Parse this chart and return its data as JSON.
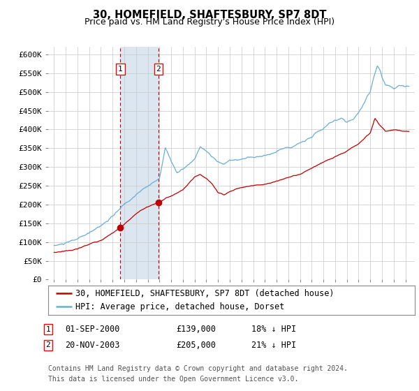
{
  "title": "30, HOMEFIELD, SHAFTESBURY, SP7 8DT",
  "subtitle": "Price paid vs. HM Land Registry's House Price Index (HPI)",
  "ylabel_ticks": [
    "£0",
    "£50K",
    "£100K",
    "£150K",
    "£200K",
    "£250K",
    "£300K",
    "£350K",
    "£400K",
    "£450K",
    "£500K",
    "£550K",
    "£600K"
  ],
  "ytick_values": [
    0,
    50000,
    100000,
    150000,
    200000,
    250000,
    300000,
    350000,
    400000,
    450000,
    500000,
    550000,
    600000
  ],
  "ylim": [
    0,
    620000
  ],
  "xlim_start": 1994.5,
  "xlim_end": 2025.8,
  "hpi_color": "#6aaed6",
  "price_color": "#c00000",
  "sale1_date": 2000.667,
  "sale1_price": 139000,
  "sale2_date": 2003.9,
  "sale2_price": 205000,
  "shade_start": 2000.667,
  "shade_end": 2003.9,
  "shade_color": "#dce6f1",
  "vline_color": "#c00000",
  "marker_color": "#c00000",
  "legend_label1": "30, HOMEFIELD, SHAFTESBURY, SP7 8DT (detached house)",
  "legend_label2": "HPI: Average price, detached house, Dorset",
  "footnote1": "Contains HM Land Registry data © Crown copyright and database right 2024.",
  "footnote2": "This data is licensed under the Open Government Licence v3.0.",
  "table_row1": [
    "1",
    "01-SEP-2000",
    "£139,000",
    "18% ↓ HPI"
  ],
  "table_row2": [
    "2",
    "20-NOV-2003",
    "£205,000",
    "21% ↓ HPI"
  ],
  "background_color": "#ffffff",
  "grid_color": "#c8c8c8",
  "title_fontsize": 10.5,
  "subtitle_fontsize": 9,
  "tick_fontsize": 8,
  "legend_fontsize": 8.5,
  "footnote_fontsize": 7
}
